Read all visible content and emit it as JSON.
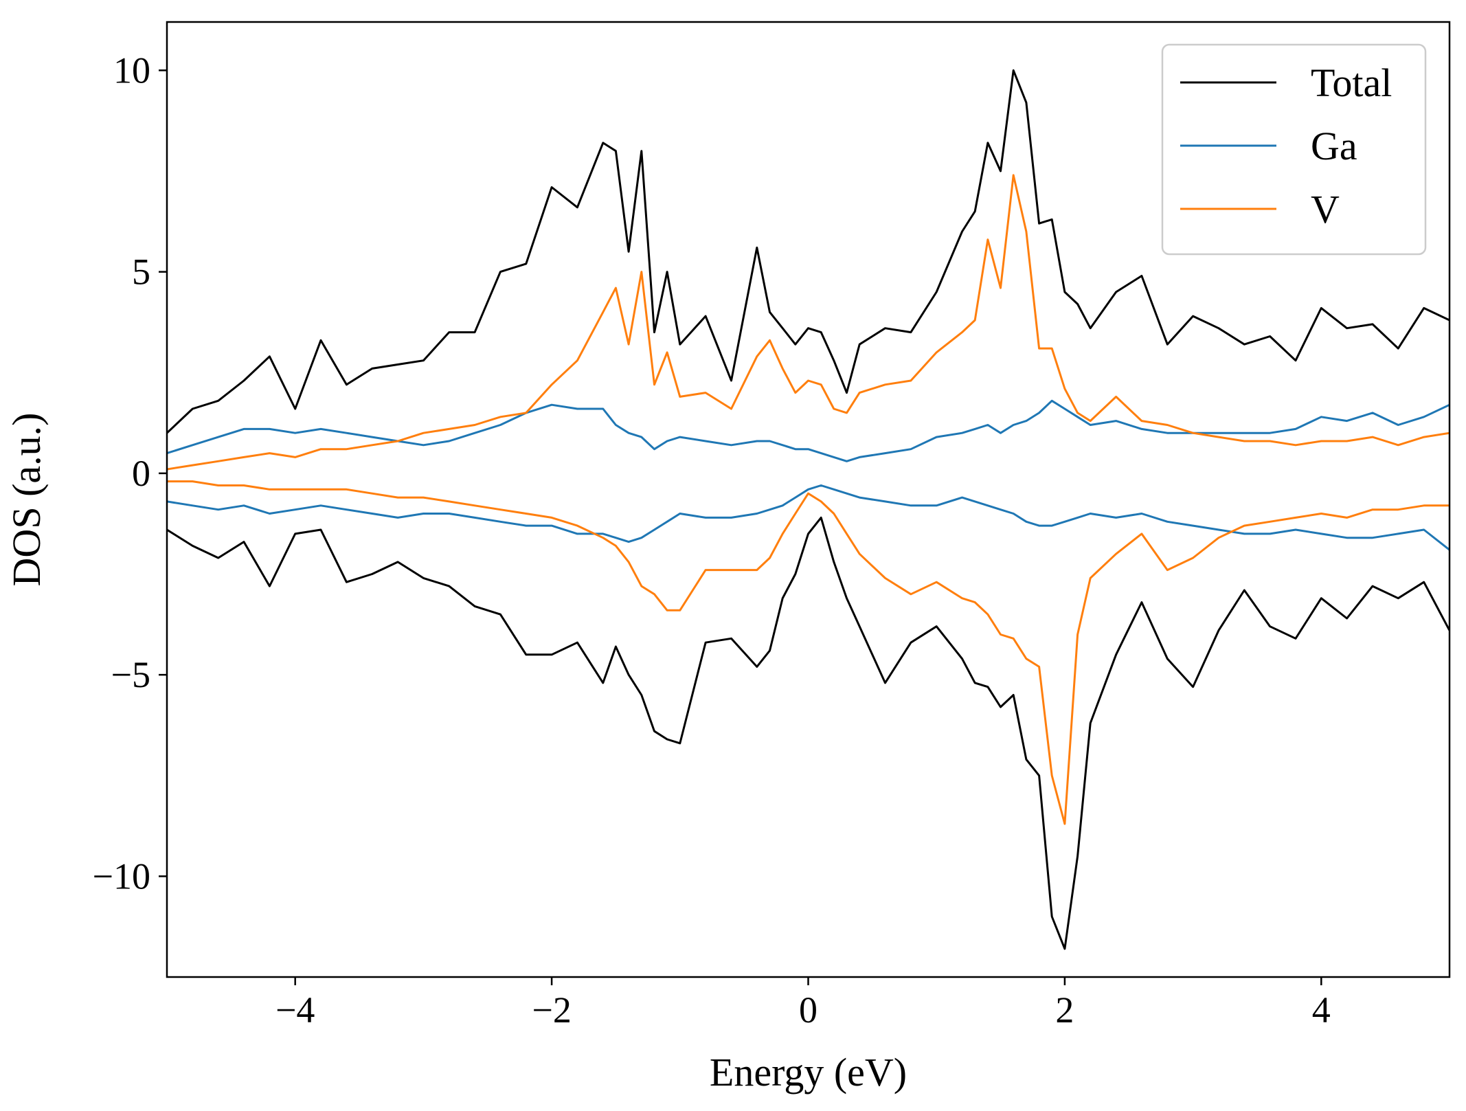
{
  "chart_data": {
    "type": "line",
    "xlabel": "Energy (eV)",
    "ylabel": "DOS (a.u.)",
    "xlim": [
      -5,
      5
    ],
    "ylim": [
      -12.5,
      11.2
    ],
    "xticks": [
      -4,
      -2,
      0,
      2,
      4
    ],
    "yticks": [
      -10,
      -5,
      0,
      5,
      10
    ],
    "grid": false,
    "legend_position": "top-right",
    "x": [
      -5.0,
      -4.8,
      -4.6,
      -4.4,
      -4.2,
      -4.0,
      -3.8,
      -3.6,
      -3.4,
      -3.2,
      -3.0,
      -2.8,
      -2.6,
      -2.4,
      -2.2,
      -2.0,
      -1.8,
      -1.6,
      -1.5,
      -1.4,
      -1.3,
      -1.2,
      -1.1,
      -1.0,
      -0.8,
      -0.6,
      -0.4,
      -0.3,
      -0.2,
      -0.1,
      0.0,
      0.1,
      0.2,
      0.3,
      0.4,
      0.6,
      0.8,
      1.0,
      1.2,
      1.3,
      1.4,
      1.5,
      1.6,
      1.7,
      1.8,
      1.9,
      2.0,
      2.1,
      2.2,
      2.4,
      2.6,
      2.8,
      3.0,
      3.2,
      3.4,
      3.6,
      3.8,
      4.0,
      4.2,
      4.4,
      4.6,
      4.8,
      5.0
    ],
    "series": [
      {
        "name": "Total",
        "color": "#000000",
        "spin_up": [
          1.0,
          1.6,
          1.8,
          2.3,
          2.9,
          1.6,
          3.3,
          2.2,
          2.6,
          2.7,
          2.8,
          3.5,
          3.5,
          5.0,
          5.2,
          7.1,
          6.6,
          8.2,
          8.0,
          5.5,
          8.0,
          3.5,
          5.0,
          3.2,
          3.9,
          2.3,
          5.6,
          4.0,
          3.6,
          3.2,
          3.6,
          3.5,
          2.8,
          2.0,
          3.2,
          3.6,
          3.5,
          4.5,
          6.0,
          6.5,
          8.2,
          7.5,
          10.0,
          9.2,
          6.2,
          6.3,
          4.5,
          4.2,
          3.6,
          4.5,
          4.9,
          3.2,
          3.9,
          3.6,
          3.2,
          3.4,
          2.8,
          4.1,
          3.6,
          3.7,
          3.1,
          4.1,
          3.8
        ],
        "spin_down": [
          -1.4,
          -1.8,
          -2.1,
          -1.7,
          -2.8,
          -1.5,
          -1.4,
          -2.7,
          -2.5,
          -2.2,
          -2.6,
          -2.8,
          -3.3,
          -3.5,
          -4.5,
          -4.5,
          -4.2,
          -5.2,
          -4.3,
          -5.0,
          -5.5,
          -6.4,
          -6.6,
          -6.7,
          -4.2,
          -4.1,
          -4.8,
          -4.4,
          -3.1,
          -2.5,
          -1.5,
          -1.1,
          -2.2,
          -3.1,
          -3.8,
          -5.2,
          -4.2,
          -3.8,
          -4.6,
          -5.2,
          -5.3,
          -5.8,
          -5.5,
          -7.1,
          -7.5,
          -11.0,
          -11.8,
          -9.5,
          -6.2,
          -4.5,
          -3.2,
          -4.6,
          -5.3,
          -3.9,
          -2.9,
          -3.8,
          -4.1,
          -3.1,
          -3.6,
          -2.8,
          -3.1,
          -2.7,
          -3.9
        ]
      },
      {
        "name": "Ga",
        "color": "#1f77b4",
        "spin_up": [
          0.5,
          0.7,
          0.9,
          1.1,
          1.1,
          1.0,
          1.1,
          1.0,
          0.9,
          0.8,
          0.7,
          0.8,
          1.0,
          1.2,
          1.5,
          1.7,
          1.6,
          1.6,
          1.2,
          1.0,
          0.9,
          0.6,
          0.8,
          0.9,
          0.8,
          0.7,
          0.8,
          0.8,
          0.7,
          0.6,
          0.6,
          0.5,
          0.4,
          0.3,
          0.4,
          0.5,
          0.6,
          0.9,
          1.0,
          1.1,
          1.2,
          1.0,
          1.2,
          1.3,
          1.5,
          1.8,
          1.6,
          1.4,
          1.2,
          1.3,
          1.1,
          1.0,
          1.0,
          1.0,
          1.0,
          1.0,
          1.1,
          1.4,
          1.3,
          1.5,
          1.2,
          1.4,
          1.7
        ],
        "spin_down": [
          -0.7,
          -0.8,
          -0.9,
          -0.8,
          -1.0,
          -0.9,
          -0.8,
          -0.9,
          -1.0,
          -1.1,
          -1.0,
          -1.0,
          -1.1,
          -1.2,
          -1.3,
          -1.3,
          -1.5,
          -1.5,
          -1.6,
          -1.7,
          -1.6,
          -1.4,
          -1.2,
          -1.0,
          -1.1,
          -1.1,
          -1.0,
          -0.9,
          -0.8,
          -0.6,
          -0.4,
          -0.3,
          -0.4,
          -0.5,
          -0.6,
          -0.7,
          -0.8,
          -0.8,
          -0.6,
          -0.7,
          -0.8,
          -0.9,
          -1.0,
          -1.2,
          -1.3,
          -1.3,
          -1.2,
          -1.1,
          -1.0,
          -1.1,
          -1.0,
          -1.2,
          -1.3,
          -1.4,
          -1.5,
          -1.5,
          -1.4,
          -1.5,
          -1.6,
          -1.6,
          -1.5,
          -1.4,
          -1.9
        ]
      },
      {
        "name": "V",
        "color": "#ff7f0e",
        "spin_up": [
          0.1,
          0.2,
          0.3,
          0.4,
          0.5,
          0.4,
          0.6,
          0.6,
          0.7,
          0.8,
          1.0,
          1.1,
          1.2,
          1.4,
          1.5,
          2.2,
          2.8,
          4.0,
          4.6,
          3.2,
          5.0,
          2.2,
          3.0,
          1.9,
          2.0,
          1.6,
          2.9,
          3.3,
          2.6,
          2.0,
          2.3,
          2.2,
          1.6,
          1.5,
          2.0,
          2.2,
          2.3,
          3.0,
          3.5,
          3.8,
          5.8,
          4.6,
          7.4,
          6.0,
          3.1,
          3.1,
          2.1,
          1.5,
          1.3,
          1.9,
          1.3,
          1.2,
          1.0,
          0.9,
          0.8,
          0.8,
          0.7,
          0.8,
          0.8,
          0.9,
          0.7,
          0.9,
          1.0
        ],
        "spin_down": [
          -0.2,
          -0.2,
          -0.3,
          -0.3,
          -0.4,
          -0.4,
          -0.4,
          -0.4,
          -0.5,
          -0.6,
          -0.6,
          -0.7,
          -0.8,
          -0.9,
          -1.0,
          -1.1,
          -1.3,
          -1.6,
          -1.8,
          -2.2,
          -2.8,
          -3.0,
          -3.4,
          -3.4,
          -2.4,
          -2.4,
          -2.4,
          -2.1,
          -1.5,
          -1.0,
          -0.5,
          -0.7,
          -1.0,
          -1.5,
          -2.0,
          -2.6,
          -3.0,
          -2.7,
          -3.1,
          -3.2,
          -3.5,
          -4.0,
          -4.1,
          -4.6,
          -4.8,
          -7.5,
          -8.7,
          -4.0,
          -2.6,
          -2.0,
          -1.5,
          -2.4,
          -2.1,
          -1.6,
          -1.3,
          -1.2,
          -1.1,
          -1.0,
          -1.1,
          -0.9,
          -0.9,
          -0.8,
          -0.8
        ]
      }
    ]
  }
}
